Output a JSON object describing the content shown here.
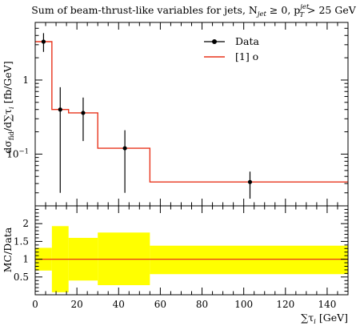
{
  "chart_data": {
    "type": "line",
    "title": "Sum of beam-thrust-like variables for jets, N",
    "title_sub_jet": "jet",
    "title_tail": " ≥ 0, p",
    "title_sup_jet": "jet",
    "title_sub_T": "T",
    "title_end": " > 25 GeV",
    "ylabel": "dσ",
    "ylabel_sub": "fid",
    "ylabel_rest": "/d∑τ",
    "ylabel_sub2": "i",
    "ylabel_units": " [fb/GeV]",
    "xlabel": "∑τ",
    "xlabel_sub": "i",
    "xlabel_units": " [GeV]",
    "ratio_ylabel": "MC/Data",
    "yscale": "log",
    "ylim": [
      0.02,
      6
    ],
    "xlim": [
      0,
      150
    ],
    "main_ytick_labels": [
      {
        "value": 1,
        "label": "1"
      },
      {
        "value": 0.1,
        "label": "10",
        "sup": "−1"
      }
    ],
    "xticks": [
      0,
      20,
      40,
      60,
      80,
      100,
      120,
      140
    ],
    "ratio_ylim": [
      0,
      2.5
    ],
    "ratio_yticks": [
      0.5,
      1,
      1.5,
      2
    ],
    "legend_position": "top-right",
    "series": [
      {
        "name": "Data",
        "kind": "points",
        "color": "#000000",
        "x": [
          4,
          12,
          23,
          43,
          103
        ],
        "y": [
          3.3,
          0.4,
          0.36,
          0.12,
          0.042
        ],
        "err_low": [
          2.4,
          0.03,
          0.15,
          0.03,
          0.025
        ],
        "err_high": [
          4.3,
          0.8,
          0.58,
          0.21,
          0.058
        ]
      },
      {
        "name": "[1] o",
        "kind": "histogram",
        "color": "#e8341c",
        "edges": [
          0,
          8,
          16,
          30,
          55,
          150
        ],
        "values": [
          3.3,
          0.4,
          0.36,
          0.12,
          0.042
        ]
      }
    ],
    "ratio": {
      "line_value": 1.0,
      "line_color": "#e8341c",
      "band_color": "#ffff00",
      "band_edges": [
        0,
        8,
        16,
        30,
        55,
        150
      ],
      "band_low": [
        0.68,
        0.07,
        0.4,
        0.27,
        0.58
      ],
      "band_high": [
        1.32,
        1.93,
        1.6,
        1.75,
        1.38
      ]
    }
  }
}
